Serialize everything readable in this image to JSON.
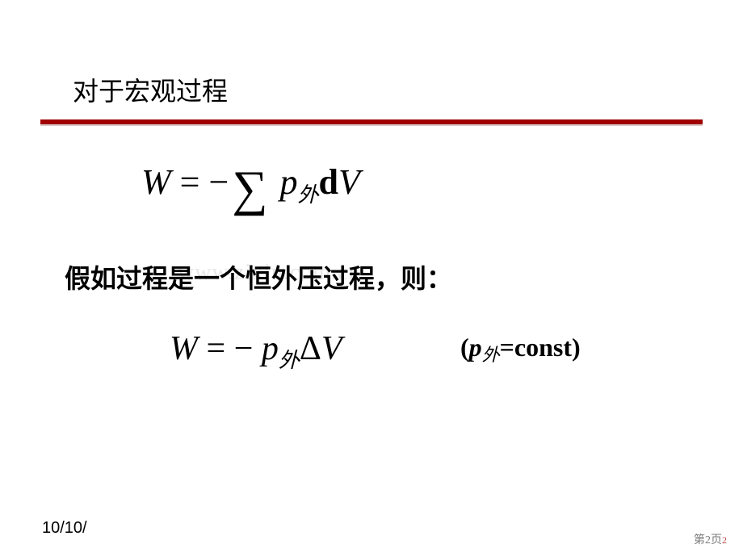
{
  "slide": {
    "title": "对于宏观过程",
    "rule_color": "#a00000",
    "watermark": "www.zixin.com.cn",
    "eq1": {
      "W": "W",
      "eq": " = ",
      "minus": "−",
      "sigma": "∑",
      "p": "p",
      "p_sub": "外",
      "d": "d",
      "V": "V"
    },
    "line2": "假如过程是一个恒外压过程，则：",
    "eq2": {
      "W": "W",
      "eq": " = ",
      "minus": "−",
      "p": "p",
      "p_sub": "外",
      "delta": "Δ",
      "V": "V"
    },
    "const_note": {
      "open": "(",
      "p": "p",
      "p_sub": "外",
      "rest": "=const)"
    },
    "footer": {
      "date": "10/10/",
      "page_label": "第2页",
      "page_small": "2"
    }
  }
}
